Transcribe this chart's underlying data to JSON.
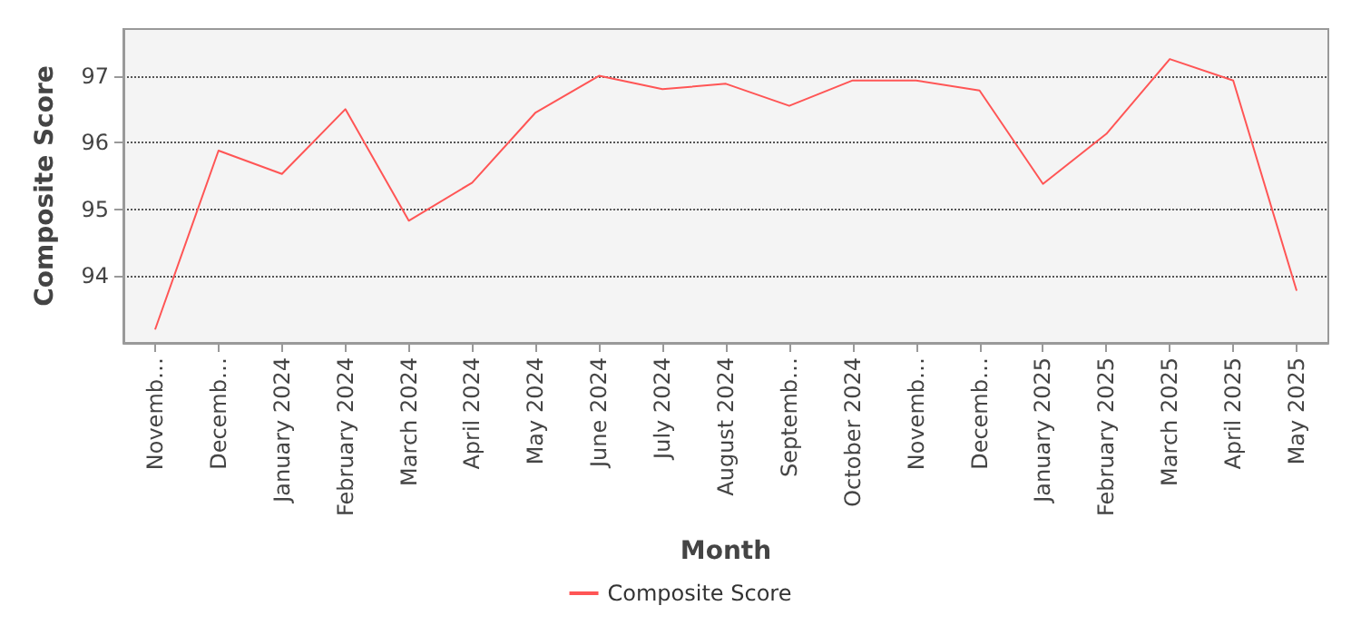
{
  "chart_data": {
    "type": "line",
    "xlabel": "Month",
    "ylabel": "Composite Score",
    "categories": [
      "Novemb…",
      "Decemb…",
      "January 2024",
      "February 2024",
      "March 2024",
      "April 2024",
      "May 2024",
      "June 2024",
      "July 2024",
      "August 2024",
      "Septemb…",
      "October 2024",
      "Novemb…",
      "Decemb…",
      "January 2025",
      "February 2025",
      "March 2025",
      "April 2025",
      "May 2025"
    ],
    "series": [
      {
        "name": "Composite Score",
        "color": "#ff5555",
        "values": [
          93.2,
          95.88,
          95.53,
          96.5,
          94.83,
          95.4,
          96.45,
          97.0,
          96.8,
          96.88,
          96.55,
          96.93,
          96.93,
          96.78,
          95.38,
          96.13,
          97.25,
          96.93,
          93.78
        ]
      }
    ],
    "ylim": [
      93.0,
      97.7
    ],
    "yticks": [
      94,
      95,
      96,
      97
    ],
    "grid": "y",
    "legend": "bottom",
    "marker": "none",
    "line_style": "solid"
  }
}
